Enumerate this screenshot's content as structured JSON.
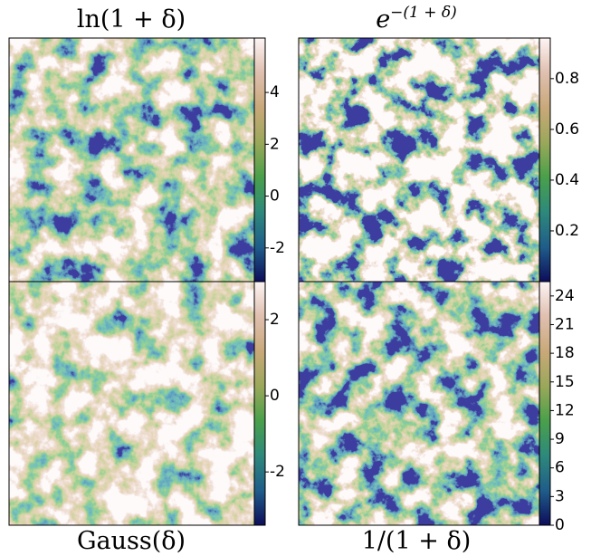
{
  "chart_data": [
    {
      "type": "heatmap",
      "title": "ln(1 + δ)",
      "colorbar_lim": [
        -3.3,
        6.1
      ],
      "colorbar_ticks": [
        -2,
        0,
        2,
        4
      ],
      "colormap": "gist_earth"
    },
    {
      "type": "heatmap",
      "title": "e",
      "title_superscript": "−(1 + δ)",
      "colorbar_lim": [
        0,
        0.96
      ],
      "colorbar_ticks": [
        0.2,
        0.4,
        0.6,
        0.8
      ],
      "colormap": "gist_earth"
    },
    {
      "type": "heatmap",
      "title": "Gauss(δ)",
      "colorbar_lim": [
        -3.4,
        3.0
      ],
      "colorbar_ticks": [
        -2,
        0,
        2
      ],
      "colormap": "gist_earth"
    },
    {
      "type": "heatmap",
      "title": "1/(1 + δ)",
      "colorbar_lim": [
        0,
        25.5
      ],
      "colorbar_ticks": [
        0,
        3,
        6,
        9,
        12,
        15,
        18,
        21,
        24
      ],
      "colormap": "gist_earth"
    }
  ]
}
